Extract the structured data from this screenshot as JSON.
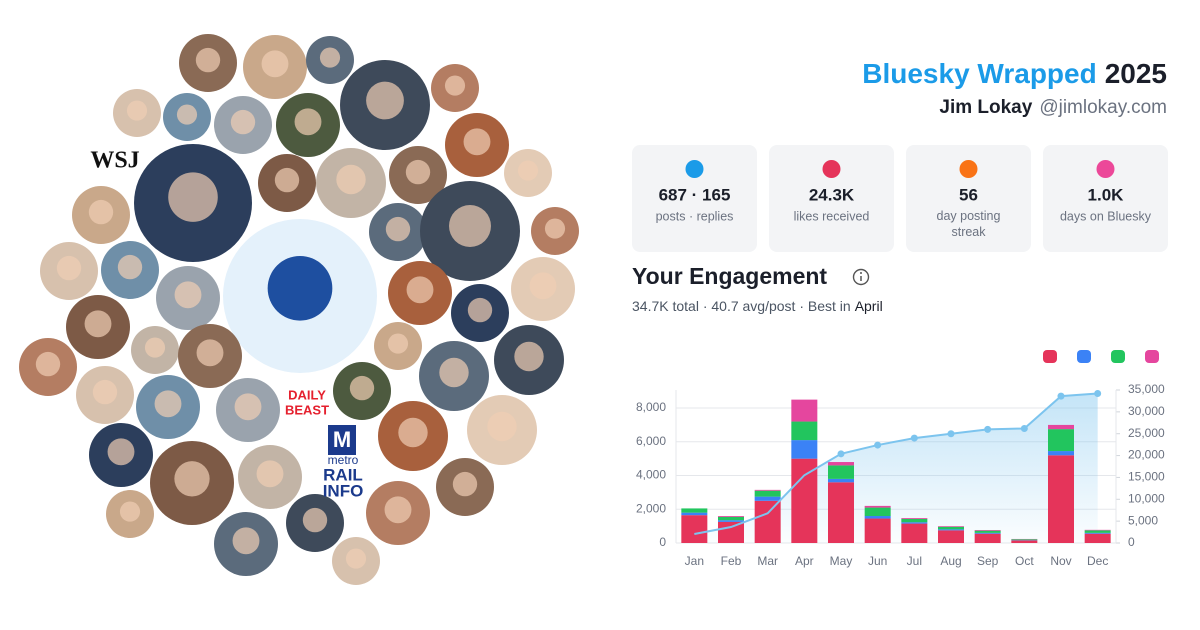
{
  "header": {
    "title": "Bluesky Wrapped",
    "year": "2025",
    "name": "Jim Lokay",
    "handle": "@jimlokay.com"
  },
  "stats": [
    {
      "value": "687 · 165",
      "label": "posts · replies"
    },
    {
      "value": "24.3K",
      "label": "likes received"
    },
    {
      "value": "56",
      "label": "day posting streak"
    },
    {
      "value": "1.0K",
      "label": "days on Bluesky"
    }
  ],
  "engagement": {
    "title": "Your Engagement",
    "summary": "34.7K total · 40.7 avg/post · Best in",
    "best_month": "April"
  },
  "logos": {
    "wsj": "WSJ",
    "daily": "DAILY",
    "beast": "BEAST",
    "metro_m": "M",
    "metro": "metro",
    "rail": "RAIL",
    "info": "INFO"
  },
  "chart_data": {
    "type": "bar",
    "stacked": true,
    "grid": true,
    "categories": [
      "Jan",
      "Feb",
      "Mar",
      "Apr",
      "May",
      "Jun",
      "Jul",
      "Aug",
      "Sep",
      "Oct",
      "Nov",
      "Dec"
    ],
    "series": [
      {
        "color": "#e5345a",
        "values": [
          1650,
          1250,
          2500,
          5000,
          3600,
          1450,
          1150,
          750,
          550,
          150,
          5200,
          550
        ]
      },
      {
        "color": "#3b82f6",
        "values": [
          150,
          100,
          250,
          1100,
          200,
          150,
          80,
          60,
          50,
          20,
          250,
          50
        ]
      },
      {
        "color": "#22c55e",
        "values": [
          250,
          200,
          350,
          1100,
          800,
          500,
          200,
          150,
          130,
          50,
          1300,
          150
        ]
      },
      {
        "color": "#e5469e",
        "values": [
          0,
          50,
          50,
          1300,
          200,
          100,
          50,
          40,
          40,
          20,
          250,
          30
        ]
      },
      {
        "color": "#7cc4ee",
        "type": "line",
        "axis": "y2",
        "values": [
          2050,
          3650,
          6800,
          15500,
          20400,
          22400,
          24000,
          25000,
          26000,
          26200,
          33600,
          34200
        ]
      }
    ],
    "ylim": [
      0,
      9070
    ],
    "yticks": [
      0,
      {
        "value": 2000,
        "label": "2,000"
      },
      {
        "value": 4000,
        "label": "4,000"
      },
      {
        "value": 6000,
        "label": "6,000"
      },
      {
        "value": 8000,
        "label": "8,000"
      }
    ],
    "y2lim": [
      0,
      35000
    ],
    "y2ticks": [
      0,
      {
        "value": 5000,
        "label": "5,000"
      },
      {
        "value": 10000,
        "label": "10,000"
      },
      {
        "value": 15000,
        "label": "15,000"
      },
      {
        "value": 20000,
        "label": "20,000"
      },
      {
        "value": 25000,
        "label": "25,000"
      },
      {
        "value": 30000,
        "label": "30,000"
      },
      {
        "value": 35000,
        "label": "35,000"
      }
    ]
  }
}
